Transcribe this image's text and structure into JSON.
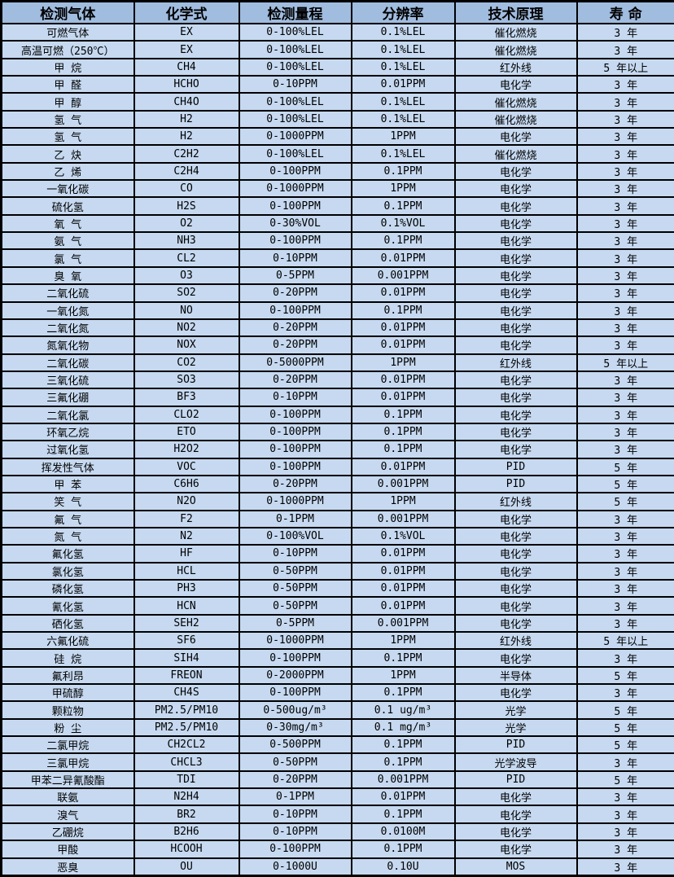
{
  "colors": {
    "header_bg": "#a0bcdf",
    "row_bg": "#c6d9f0",
    "border": "#000000",
    "text": "#000000"
  },
  "table": {
    "columns": [
      "检测气体",
      "化学式",
      "检测量程",
      "分辨率",
      "技术原理",
      "寿 命"
    ],
    "rows": [
      [
        "可燃气体",
        "EX",
        "0-100%LEL",
        "0.1%LEL",
        "催化燃烧",
        "3 年"
      ],
      [
        "高温可燃（250℃）",
        "EX",
        "0-100%LEL",
        "0.1%LEL",
        "催化燃烧",
        "3 年"
      ],
      [
        "甲 烷",
        "CH4",
        "0-100%LEL",
        "0.1%LEL",
        "红外线",
        "5 年以上"
      ],
      [
        "甲 醛",
        "HCHO",
        "0-10PPM",
        "0.01PPM",
        "电化学",
        "3 年"
      ],
      [
        "甲 醇",
        "CH4O",
        "0-100%LEL",
        "0.1%LEL",
        "催化燃烧",
        "3 年"
      ],
      [
        "氢 气",
        "H2",
        "0-100%LEL",
        "0.1%LEL",
        "催化燃烧",
        "3 年"
      ],
      [
        "氢 气",
        "H2",
        "0-1000PPM",
        "1PPM",
        "电化学",
        "3 年"
      ],
      [
        "乙 炔",
        "C2H2",
        "0-100%LEL",
        "0.1%LEL",
        "催化燃烧",
        "3 年"
      ],
      [
        "乙 烯",
        "C2H4",
        "0-100PPM",
        "0.1PPM",
        "电化学",
        "3 年"
      ],
      [
        "一氧化碳",
        "CO",
        "0-1000PPM",
        "1PPM",
        "电化学",
        "3 年"
      ],
      [
        "硫化氢",
        "H2S",
        "0-100PPM",
        "0.1PPM",
        "电化学",
        "3 年"
      ],
      [
        "氧 气",
        "O2",
        "0-30%VOL",
        "0.1%VOL",
        "电化学",
        "3 年"
      ],
      [
        "氨 气",
        "NH3",
        "0-100PPM",
        "0.1PPM",
        "电化学",
        "3 年"
      ],
      [
        "氯 气",
        "CL2",
        "0-10PPM",
        "0.01PPM",
        "电化学",
        "3 年"
      ],
      [
        "臭 氧",
        "O3",
        "0-5PPM",
        "0.001PPM",
        "电化学",
        "3 年"
      ],
      [
        "二氧化硫",
        "SO2",
        "0-20PPM",
        "0.01PPM",
        "电化学",
        "3 年"
      ],
      [
        "一氧化氮",
        "NO",
        "0-100PPM",
        "0.1PPM",
        "电化学",
        "3 年"
      ],
      [
        "二氧化氮",
        "NO2",
        "0-20PPM",
        "0.01PPM",
        "电化学",
        "3 年"
      ],
      [
        "氮氧化物",
        "NOX",
        "0-20PPM",
        "0.01PPM",
        "电化学",
        "3 年"
      ],
      [
        "二氧化碳",
        "CO2",
        "0-5000PPM",
        "1PPM",
        "红外线",
        "5 年以上"
      ],
      [
        "三氧化硫",
        "SO3",
        "0-20PPM",
        "0.01PPM",
        "电化学",
        "3 年"
      ],
      [
        "三氟化硼",
        "BF3",
        "0-10PPM",
        "0.01PPM",
        "电化学",
        "3 年"
      ],
      [
        "二氧化氯",
        "CLO2",
        "0-100PPM",
        "0.1PPM",
        "电化学",
        "3 年"
      ],
      [
        "环氧乙烷",
        "ETO",
        "0-100PPM",
        "0.1PPM",
        "电化学",
        "3 年"
      ],
      [
        "过氧化氢",
        "H2O2",
        "0-100PPM",
        "0.1PPM",
        "电化学",
        "3 年"
      ],
      [
        "挥发性气体",
        "VOC",
        "0-100PPM",
        "0.01PPM",
        "PID",
        "5 年"
      ],
      [
        "甲 苯",
        "C6H6",
        "0-20PPM",
        "0.001PPM",
        "PID",
        "5 年"
      ],
      [
        "笑 气",
        "N2O",
        "0-1000PPM",
        "1PPM",
        "红外线",
        "5 年"
      ],
      [
        "氟 气",
        "F2",
        "0-1PPM",
        "0.001PPM",
        "电化学",
        "3 年"
      ],
      [
        "氮 气",
        "N2",
        "0-100%VOL",
        "0.1%VOL",
        "电化学",
        "3 年"
      ],
      [
        "氟化氢",
        "HF",
        "0-10PPM",
        "0.01PPM",
        "电化学",
        "3 年"
      ],
      [
        "氯化氢",
        "HCL",
        "0-50PPM",
        "0.01PPM",
        "电化学",
        "3 年"
      ],
      [
        "磷化氢",
        "PH3",
        "0-50PPM",
        "0.01PPM",
        "电化学",
        "3 年"
      ],
      [
        "氰化氢",
        "HCN",
        "0-50PPM",
        "0.01PPM",
        "电化学",
        "3 年"
      ],
      [
        "硒化氢",
        "SEH2",
        "0-5PPM",
        "0.001PPM",
        "电化学",
        "3 年"
      ],
      [
        "六氟化硫",
        "SF6",
        "0-1000PPM",
        "1PPM",
        "红外线",
        "5 年以上"
      ],
      [
        "硅 烷",
        "SIH4",
        "0-100PPM",
        "0.1PPM",
        "电化学",
        "3 年"
      ],
      [
        "氟利昂",
        "FREON",
        "0-2000PPM",
        "1PPM",
        "半导体",
        "5 年"
      ],
      [
        "甲硫醇",
        "CH4S",
        "0-100PPM",
        "0.1PPM",
        "电化学",
        "3 年"
      ],
      [
        "颗粒物",
        "PM2.5/PM10",
        "0-500ug/m³",
        "0.1 ug/m³",
        "光学",
        "5 年"
      ],
      [
        "粉 尘",
        "PM2.5/PM10",
        "0-30mg/m³",
        "0.1 mg/m³",
        "光学",
        "5 年"
      ],
      [
        "二氯甲烷",
        "CH2CL2",
        "0-500PPM",
        "0.1PPM",
        "PID",
        "5 年"
      ],
      [
        "三氯甲烷",
        "CHCL3",
        "0-50PPM",
        "0.1PPM",
        "光学波导",
        "3 年"
      ],
      [
        "甲苯二异氰酸酯",
        "TDI",
        "0-20PPM",
        "0.001PPM",
        "PID",
        "5 年"
      ],
      [
        "联氨",
        "N2H4",
        "0-1PPM",
        "0.01PPM",
        "电化学",
        "3 年"
      ],
      [
        "溴气",
        "BR2",
        "0-10PPM",
        "0.1PPM",
        "电化学",
        "3 年"
      ],
      [
        "乙硼烷",
        "B2H6",
        "0-10PPM",
        "0.0100M",
        "电化学",
        "3 年"
      ],
      [
        "甲酸",
        "HCOOH",
        "0-100PPM",
        "0.1PPM",
        "电化学",
        "3 年"
      ],
      [
        "恶臭",
        "OU",
        "0-1000U",
        "0.10U",
        "MOS",
        "3 年"
      ]
    ]
  }
}
